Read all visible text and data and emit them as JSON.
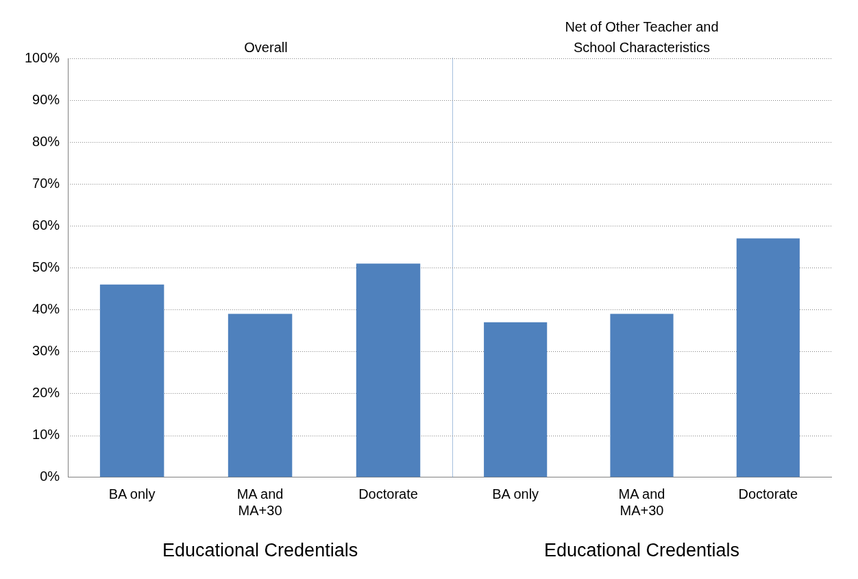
{
  "chart_data": [
    {
      "type": "bar",
      "title": "Overall",
      "xlabel": "Educational Credentials",
      "categories": [
        "BA only",
        "MA and MA+30",
        "Doctorate"
      ],
      "values": [
        46,
        39,
        51
      ],
      "color": "#4f81bd",
      "ylim": [
        0,
        100
      ],
      "yticks": [
        {
          "value": 0,
          "label": "0%"
        },
        {
          "value": 10,
          "label": "10%"
        },
        {
          "value": 20,
          "label": "20%"
        },
        {
          "value": 30,
          "label": "30%"
        },
        {
          "value": 40,
          "label": "40%"
        },
        {
          "value": 50,
          "label": "50%"
        },
        {
          "value": 60,
          "label": "60%"
        },
        {
          "value": 70,
          "label": "70%"
        },
        {
          "value": 80,
          "label": "80%"
        },
        {
          "value": 90,
          "label": "90%"
        },
        {
          "value": 100,
          "label": "100%"
        }
      ],
      "grid": "y"
    },
    {
      "type": "bar",
      "title": "Net of Other Teacher and School Characteristics",
      "xlabel": "Educational Credentials",
      "categories": [
        "BA only",
        "MA and MA+30",
        "Doctorate"
      ],
      "values": [
        37,
        39,
        57
      ],
      "color": "#4f81bd",
      "ylim": [
        0,
        100
      ],
      "yticks": [
        0,
        10,
        20,
        30,
        40,
        50,
        60,
        70,
        80,
        90,
        100
      ],
      "grid": "y",
      "tick_labels": "x"
    }
  ]
}
